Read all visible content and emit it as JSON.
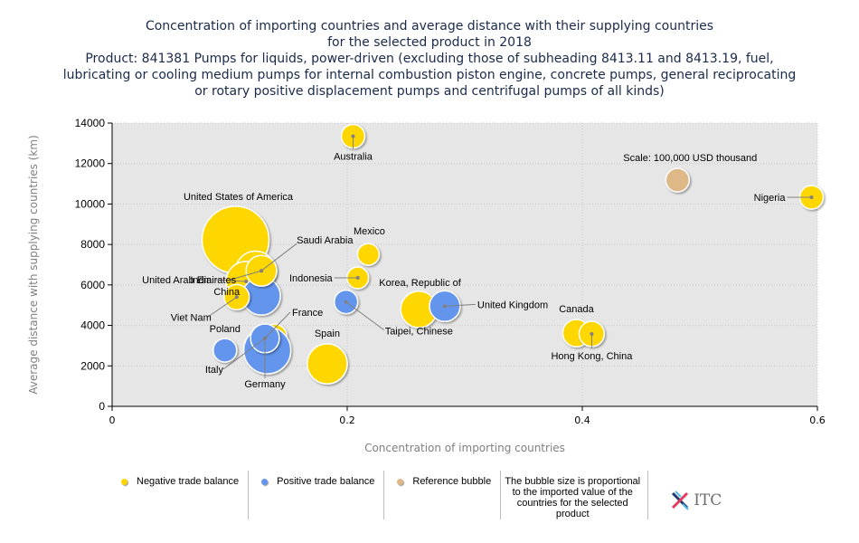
{
  "title": {
    "line1": "Concentration of importing countries and average distance with their supplying countries",
    "line2": "for the selected product in 2018",
    "line3": "Product: 841381 Pumps for liquids, power-driven (excluding those of subheading 8413.11 and 8413.19, fuel,",
    "line4": "lubricating or cooling medium pumps for internal combustion piston engine, concrete pumps, general reciprocating",
    "line5": "or rotary positive displacement pumps and centrifugal pumps of all kinds)"
  },
  "colors": {
    "negative": "#FFD700",
    "positive": "#6495ED",
    "reference": "#DEB887",
    "plot_bg": "#E6E6E6"
  },
  "legend": {
    "negative": "Negative trade balance",
    "positive": "Positive trade balance",
    "reference": "Reference bubble",
    "note": "The bubble size is proportional to the imported value of the countries for the selected product",
    "logo": "ITC"
  },
  "chart_data": {
    "type": "scatter",
    "subtype": "bubble",
    "title": "Concentration of importing countries and average distance with their supplying countries for the selected product in 2018",
    "xlabel": "Concentration of importing countries",
    "ylabel": "Average distance with supplying countries (km)",
    "xlim": [
      0,
      0.6
    ],
    "ylim": [
      0,
      14000
    ],
    "xticks": [
      0,
      0.2,
      0.4,
      0.6
    ],
    "xtick_labels": [
      "0",
      "0.2",
      "0.4",
      "0.6"
    ],
    "yticks": [
      0,
      2000,
      4000,
      6000,
      8000,
      10000,
      12000,
      14000
    ],
    "ytick_labels": [
      "0",
      "2000",
      "4000",
      "6000",
      "8000",
      "10000",
      "12000",
      "14000"
    ],
    "grid": true,
    "legend_position": "bottom",
    "reference": {
      "label": "Scale: 100,000 USD thousand",
      "x": 0.481,
      "y": 11180,
      "size": 100000
    },
    "points": [
      {
        "name": "United States of America",
        "x": 0.105,
        "y": 8230,
        "size": 810000,
        "balance": "negative"
      },
      {
        "name": "Saudi Arabia (large)",
        "x": 0.122,
        "y": 6680,
        "size": 290000,
        "balance": "negative"
      },
      {
        "name": "India",
        "x": 0.114,
        "y": 6170,
        "size": 290000,
        "balance": "negative"
      },
      {
        "name": "China",
        "x": 0.127,
        "y": 5450,
        "size": 260000,
        "balance": "positive"
      },
      {
        "name": "Saudi Arabia",
        "x": 0.127,
        "y": 6700,
        "size": 170000,
        "balance": "negative"
      },
      {
        "name": "Viet Nam",
        "x": 0.106,
        "y": 5400,
        "size": 115000,
        "balance": "negative"
      },
      {
        "name": "Australia",
        "x": 0.205,
        "y": 13350,
        "size": 100000,
        "balance": "negative"
      },
      {
        "name": "Mexico",
        "x": 0.218,
        "y": 7510,
        "size": 85000,
        "balance": "negative"
      },
      {
        "name": "Indonesia",
        "x": 0.209,
        "y": 6350,
        "size": 85000,
        "balance": "negative"
      },
      {
        "name": "Taipei, Chinese",
        "x": 0.199,
        "y": 5160,
        "size": 100000,
        "balance": "positive"
      },
      {
        "name": "Korea, Republic of",
        "x": 0.261,
        "y": 4790,
        "size": 240000,
        "balance": "negative"
      },
      {
        "name": "United Kingdom",
        "x": 0.283,
        "y": 4950,
        "size": 170000,
        "balance": "positive"
      },
      {
        "name": "France",
        "x": 0.138,
        "y": 3440,
        "size": 115000,
        "balance": "negative"
      },
      {
        "name": "Germany",
        "x": 0.132,
        "y": 2770,
        "size": 400000,
        "balance": "positive"
      },
      {
        "name": "Italy",
        "x": 0.13,
        "y": 3360,
        "size": 150000,
        "balance": "positive"
      },
      {
        "name": "Poland",
        "x": 0.096,
        "y": 2770,
        "size": 100000,
        "balance": "positive"
      },
      {
        "name": "Spain",
        "x": 0.183,
        "y": 2100,
        "size": 290000,
        "balance": "negative"
      },
      {
        "name": "Canada",
        "x": 0.395,
        "y": 3620,
        "size": 135000,
        "balance": "negative"
      },
      {
        "name": "Hong Kong, China",
        "x": 0.408,
        "y": 3580,
        "size": 115000,
        "balance": "negative"
      },
      {
        "name": "Nigeria",
        "x": 0.595,
        "y": 10330,
        "size": 100000,
        "balance": "negative"
      }
    ],
    "labels": [
      {
        "text": "United States of America",
        "x": 0.105,
        "y": 8230
      },
      {
        "text": "Saudi Arabia",
        "x": 0.127,
        "y": 6700
      },
      {
        "text": "India",
        "x": 0.114,
        "y": 6170
      },
      {
        "text": "China",
        "x": 0.127,
        "y": 5450
      },
      {
        "text": "United Arab Emirates",
        "x": 0.127,
        "y": 6700
      },
      {
        "text": "Viet Nam",
        "x": 0.106,
        "y": 5400
      },
      {
        "text": "Australia",
        "x": 0.205,
        "y": 13350
      },
      {
        "text": "Mexico",
        "x": 0.218,
        "y": 7510
      },
      {
        "text": "Indonesia",
        "x": 0.209,
        "y": 6350
      },
      {
        "text": "Korea, Republic of",
        "x": 0.261,
        "y": 4790
      },
      {
        "text": "United Kingdom",
        "x": 0.283,
        "y": 4950
      },
      {
        "text": "Taipei, Chinese",
        "x": 0.199,
        "y": 5160
      },
      {
        "text": "France",
        "x": 0.138,
        "y": 3440
      },
      {
        "text": "Poland",
        "x": 0.096,
        "y": 2770
      },
      {
        "text": "Italy",
        "x": 0.13,
        "y": 3360
      },
      {
        "text": "Germany",
        "x": 0.132,
        "y": 2770
      },
      {
        "text": "Spain",
        "x": 0.183,
        "y": 2100
      },
      {
        "text": "Canada",
        "x": 0.395,
        "y": 3620
      },
      {
        "text": "Hong Kong, China",
        "x": 0.408,
        "y": 3580
      },
      {
        "text": "Nigeria",
        "x": 0.595,
        "y": 10330
      }
    ]
  }
}
